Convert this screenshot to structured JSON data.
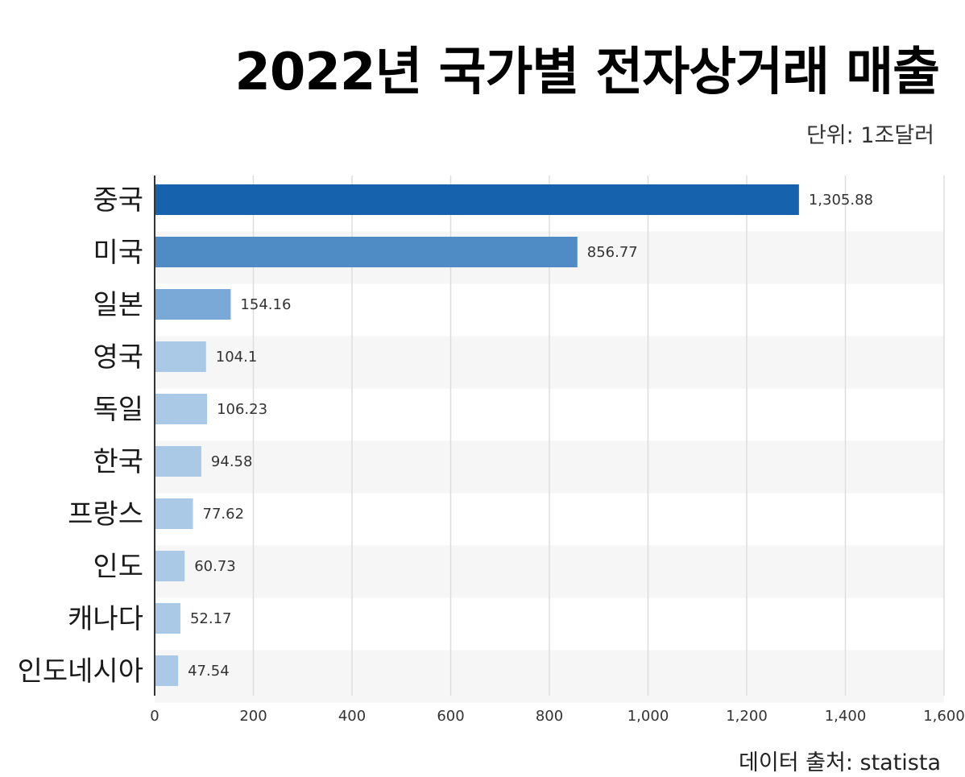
{
  "chart_data": {
    "type": "bar",
    "orientation": "horizontal",
    "title": "2022년 국가별 전자상거래 매출",
    "unit": "단위: 1조달러",
    "source": "데이터 출처: statista",
    "categories": [
      "중국",
      "미국",
      "일본",
      "영국",
      "독일",
      "한국",
      "프랑스",
      "인도",
      "캐나다",
      "인도네시아"
    ],
    "values": [
      1305.88,
      856.77,
      154.16,
      104.1,
      106.23,
      94.58,
      77.62,
      60.73,
      52.17,
      47.54
    ],
    "value_labels": [
      "1,305.88",
      "856.77",
      "154.16",
      "104.1",
      "106.23",
      "94.58",
      "77.62",
      "60.73",
      "52.17",
      "47.54"
    ],
    "bar_colors": [
      "#1762ad",
      "#4f8cc6",
      "#7aa9d8",
      "#a9c9e6",
      "#a9c9e6",
      "#a9c9e6",
      "#a9c9e6",
      "#a9c9e6",
      "#a9c9e6",
      "#a9c9e6"
    ],
    "xlim": [
      0,
      1600
    ],
    "xticks": [
      0,
      200,
      400,
      600,
      800,
      1000,
      1200,
      1400,
      1600
    ],
    "xtick_labels": [
      "0",
      "200",
      "400",
      "600",
      "800",
      "1,000",
      "1,200",
      "1,400",
      "1,600"
    ],
    "grid": true,
    "xlabel": "",
    "ylabel": ""
  }
}
